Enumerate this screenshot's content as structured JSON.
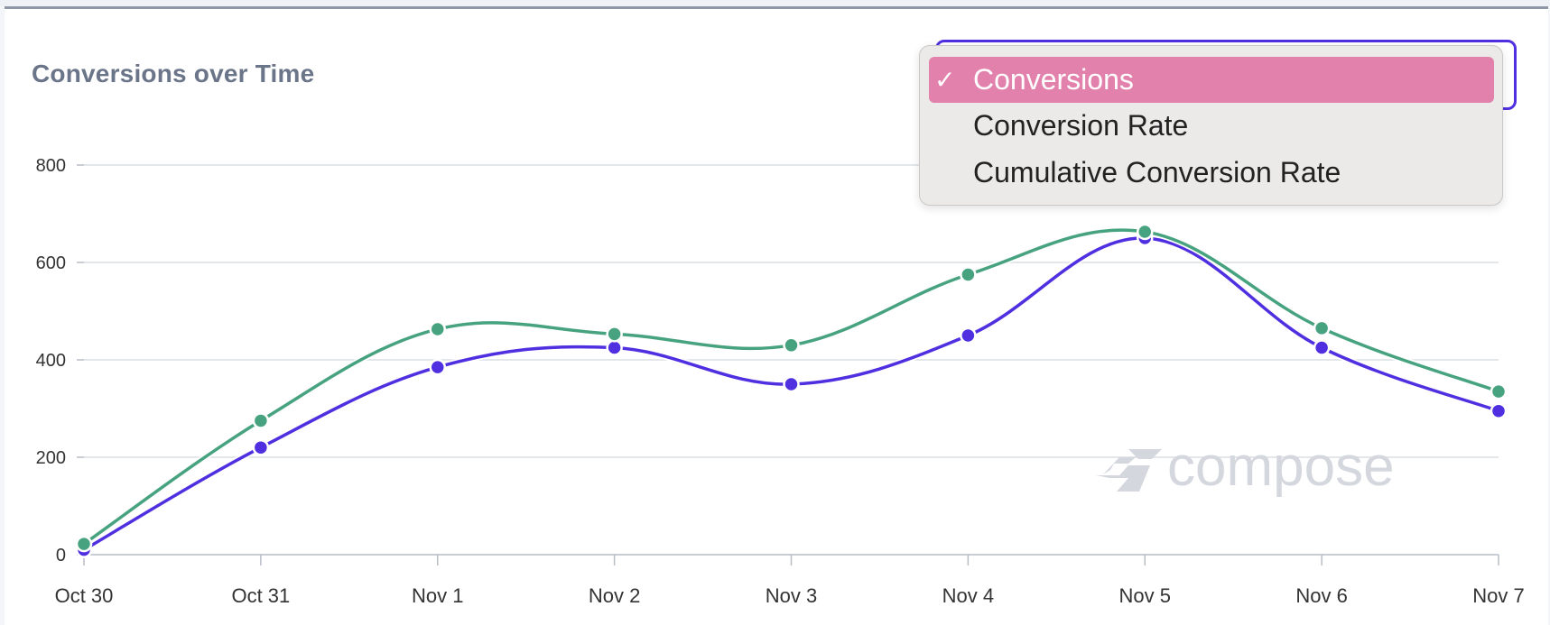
{
  "header": {
    "title": "Conversions over Time"
  },
  "metric_select": {
    "selected": "Conversions",
    "options": [
      {
        "label": "Conversions",
        "selected": true
      },
      {
        "label": "Conversion Rate",
        "selected": false
      },
      {
        "label": "Cumulative Conversion Rate",
        "selected": false
      }
    ],
    "check_glyph": "✓"
  },
  "watermark": {
    "text": "compose",
    "icon": "compose-logo-icon"
  },
  "colors": {
    "series_purple": "#4f2fe0",
    "series_green": "#47a37f",
    "selected_option": "#e282ac"
  },
  "chart_data": {
    "type": "line",
    "title": "Conversions over Time",
    "categories": [
      "Oct 30",
      "Oct 31",
      "Nov 1",
      "Nov 2",
      "Nov 3",
      "Nov 4",
      "Nov 5",
      "Nov 6",
      "Nov 7"
    ],
    "ylim": [
      0,
      800
    ],
    "yticks": [
      0,
      200,
      400,
      600,
      800
    ],
    "grid": true,
    "series": [
      {
        "color": "#4f2fe0",
        "values": [
          10,
          220,
          385,
          425,
          350,
          450,
          650,
          425,
          295
        ]
      },
      {
        "color": "#47a37f",
        "values": [
          22,
          275,
          463,
          453,
          430,
          575,
          663,
          465,
          335
        ]
      }
    ]
  }
}
